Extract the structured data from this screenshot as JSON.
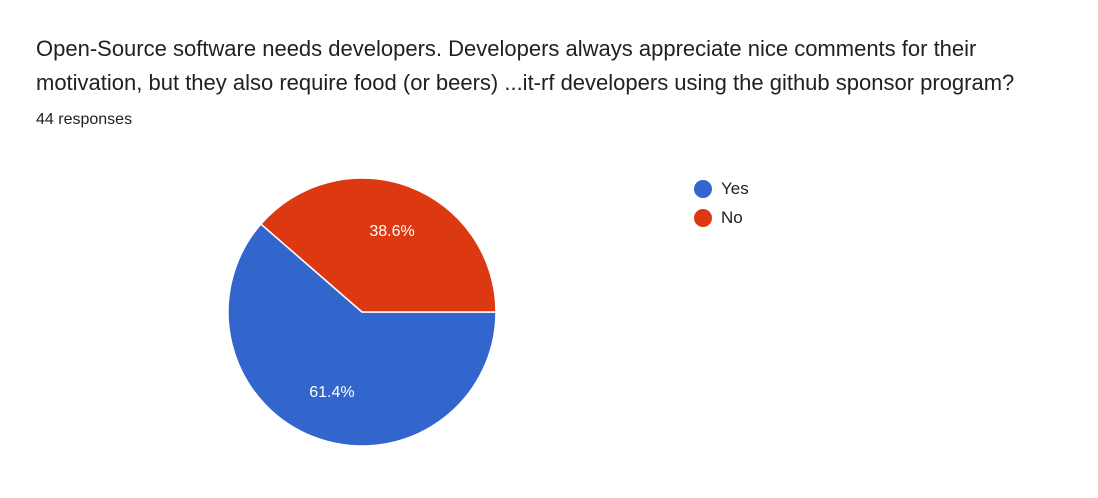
{
  "question": {
    "line1": "Open-Source software needs developers. Developers always appreciate nice comments for their",
    "line2": "motivation, but they also require food (or beers) ...it-rf developers using the github sponsor program?"
  },
  "responses_label": "44 responses",
  "chart_data": {
    "type": "pie",
    "categories": [
      "Yes",
      "No"
    ],
    "values": [
      61.4,
      38.6
    ],
    "labels": [
      "61.4%",
      "38.6%"
    ],
    "colors": [
      "#3366cc",
      "#dc3912"
    ],
    "legend_position": "right"
  }
}
